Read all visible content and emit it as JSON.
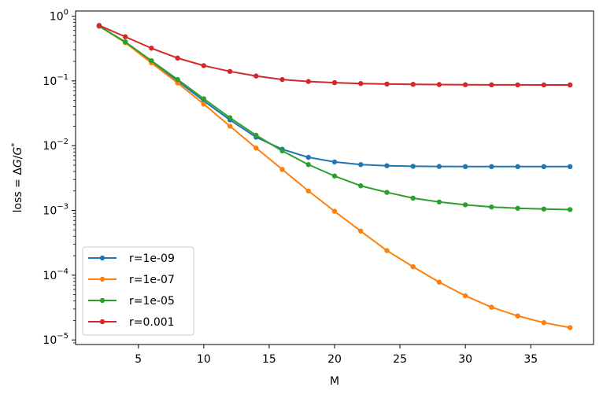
{
  "chart_data": {
    "type": "line",
    "xlabel": "M",
    "ylabel": "loss = ΔG/G*",
    "yscale": "log",
    "xlim": [
      0.2,
      39.8
    ],
    "ylim": [
      8.5e-06,
      1.2
    ],
    "xticks": [
      5,
      10,
      15,
      20,
      25,
      30,
      35
    ],
    "yticks": [
      {
        "value": 1e-05,
        "base": "10",
        "exp": "−5"
      },
      {
        "value": 0.0001,
        "base": "10",
        "exp": "−4"
      },
      {
        "value": 0.001,
        "base": "10",
        "exp": "−3"
      },
      {
        "value": 0.01,
        "base": "10",
        "exp": "−2"
      },
      {
        "value": 0.1,
        "base": "10",
        "exp": "−1"
      },
      {
        "value": 1,
        "base": "10",
        "exp": "0"
      }
    ],
    "grid": false,
    "legend_position": "lower-left",
    "x": [
      2,
      4,
      6,
      8,
      10,
      12,
      14,
      16,
      18,
      20,
      22,
      24,
      26,
      28,
      30,
      32,
      34,
      36,
      38
    ],
    "series": [
      {
        "name": "r=1e-09",
        "color": "#1f77b4",
        "values": [
          0.7,
          0.4,
          0.2,
          0.1,
          0.049,
          0.025,
          0.0135,
          0.0088,
          0.0066,
          0.0056,
          0.0051,
          0.0049,
          0.0048,
          0.00478,
          0.00475,
          0.00475,
          0.00475,
          0.00475,
          0.00475
        ]
      },
      {
        "name": "r=1e-07",
        "color": "#ff7f0e",
        "values": [
          0.7,
          0.39,
          0.19,
          0.093,
          0.044,
          0.02,
          0.0092,
          0.0043,
          0.002,
          0.00097,
          0.00048,
          0.00024,
          0.000135,
          7.8e-05,
          4.8e-05,
          3.2e-05,
          2.35e-05,
          1.85e-05,
          1.55e-05
        ]
      },
      {
        "name": "r=1e-05",
        "color": "#2ca02c",
        "values": [
          0.7,
          0.4,
          0.205,
          0.105,
          0.053,
          0.027,
          0.0145,
          0.0083,
          0.0051,
          0.0034,
          0.0024,
          0.0019,
          0.00155,
          0.00135,
          0.00122,
          0.00113,
          0.00108,
          0.00105,
          0.00103
        ]
      },
      {
        "name": "r=0.001",
        "color": "#d62728",
        "values": [
          0.72,
          0.48,
          0.32,
          0.225,
          0.172,
          0.14,
          0.119,
          0.105,
          0.098,
          0.094,
          0.091,
          0.0895,
          0.0885,
          0.0878,
          0.0873,
          0.087,
          0.0868,
          0.0867,
          0.0866
        ]
      }
    ]
  }
}
